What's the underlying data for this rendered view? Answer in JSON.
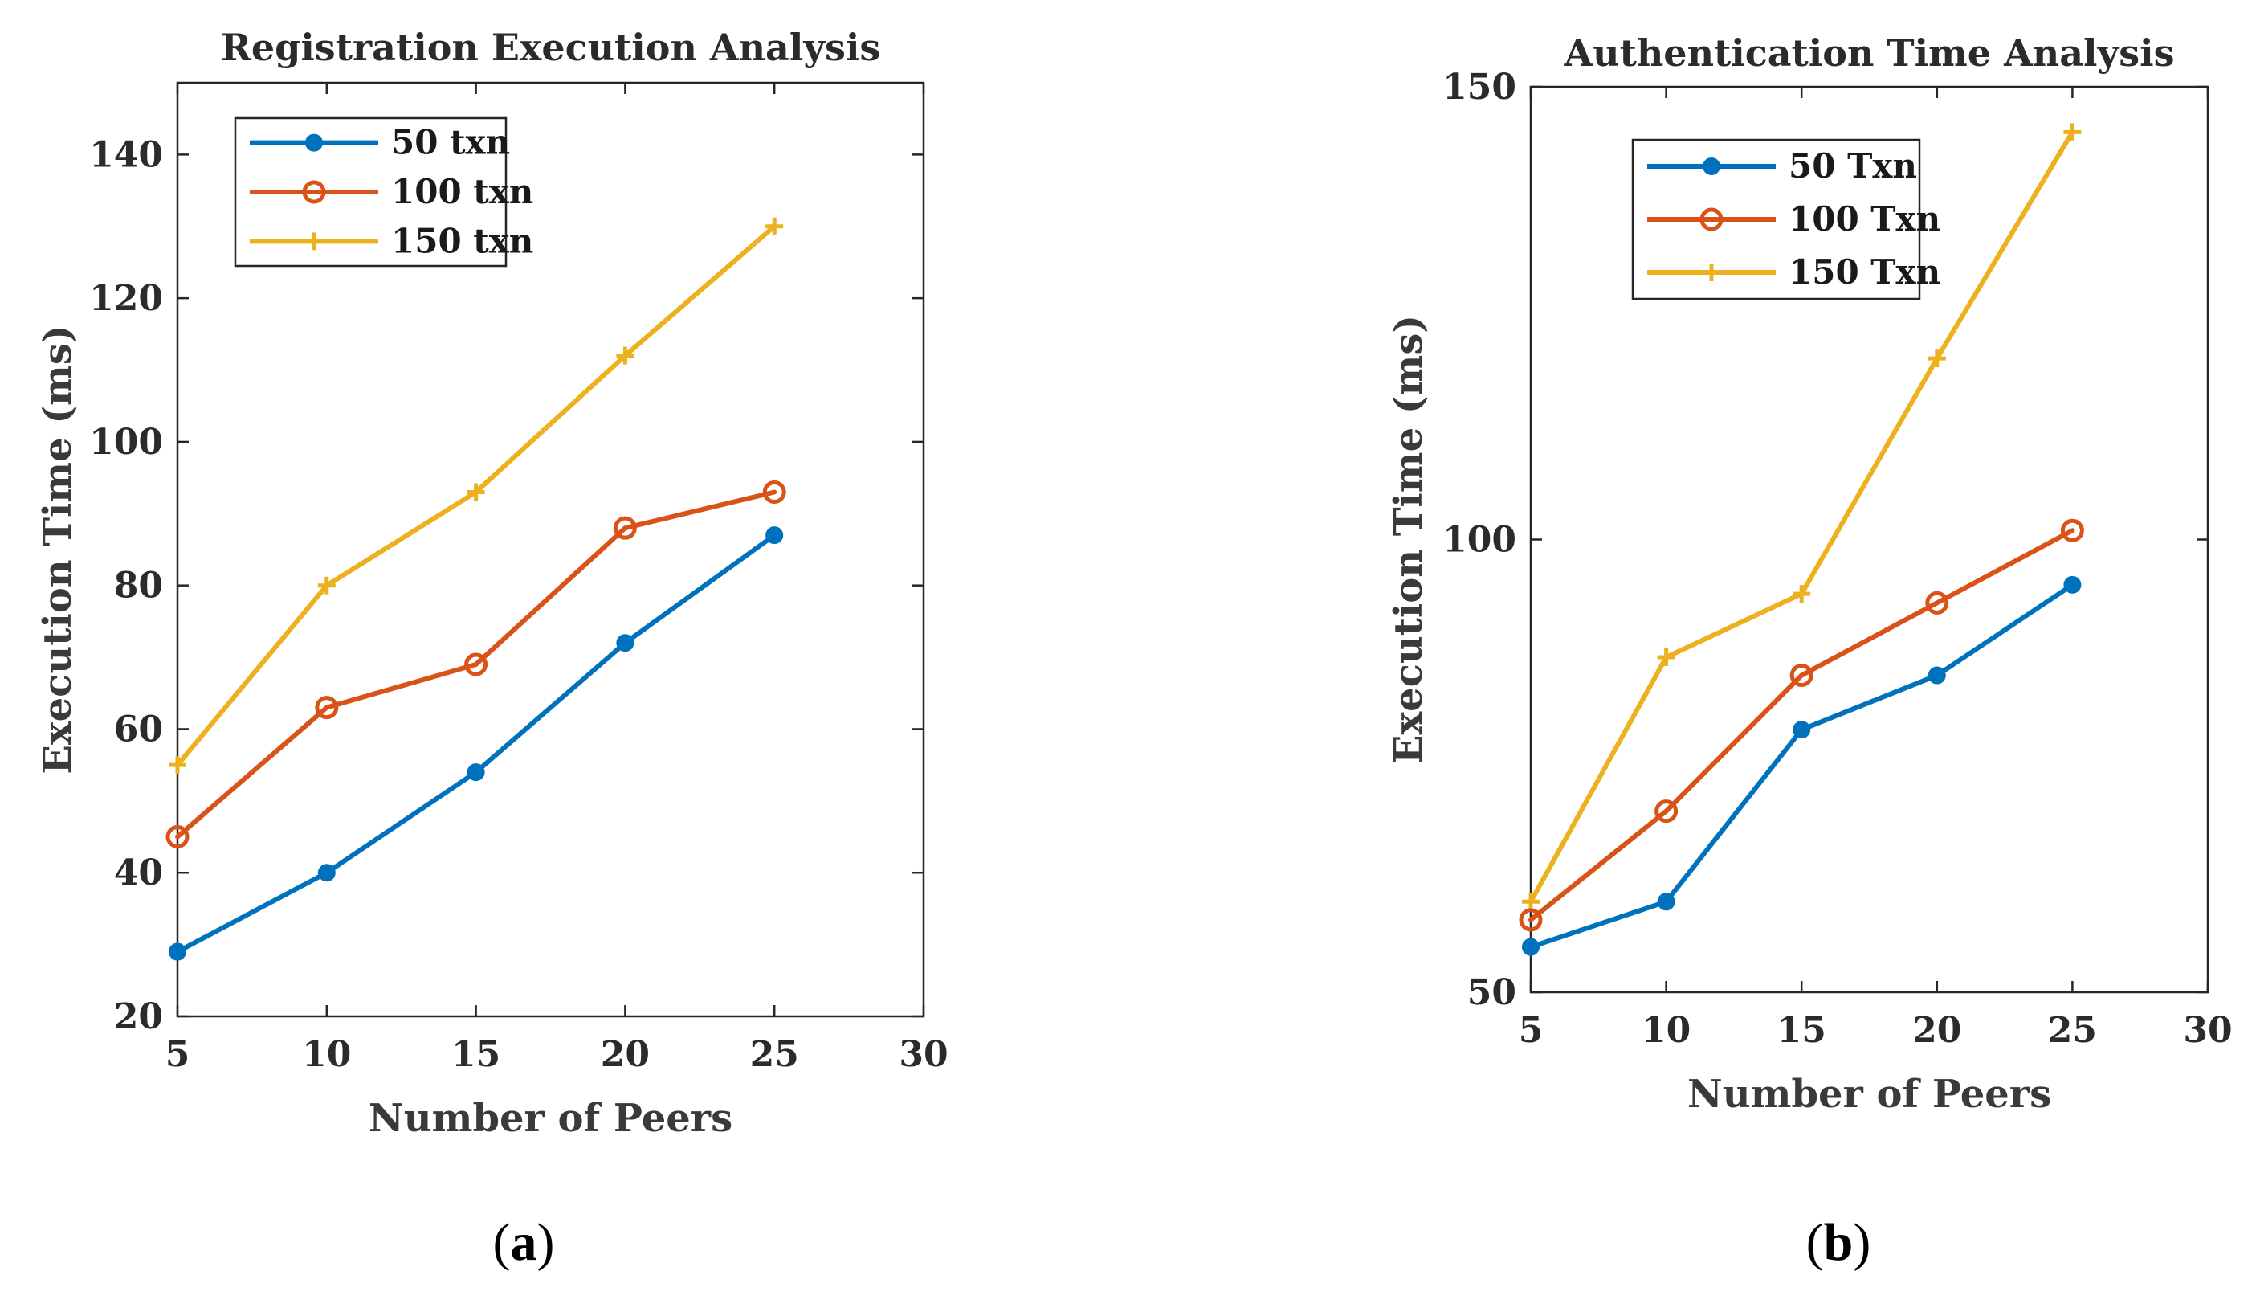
{
  "chart_data": [
    {
      "type": "line",
      "title": "Registration Execution  Analysis",
      "xlabel": "Number of Peers",
      "ylabel": "Execution Time (ms)",
      "xlim": [
        5,
        30
      ],
      "ylim": [
        20,
        150
      ],
      "xticks": [
        5,
        10,
        15,
        20,
        25,
        30
      ],
      "yticks": [
        20,
        40,
        60,
        80,
        100,
        120,
        140
      ],
      "legend_position": "top-left",
      "x": [
        5,
        10,
        15,
        20,
        25
      ],
      "series": [
        {
          "name": "50 txn",
          "values": [
            29,
            40,
            54,
            72,
            87
          ],
          "color": "#0072BD",
          "marker": "filled-circle"
        },
        {
          "name": "100 txn",
          "values": [
            45,
            63,
            69,
            88,
            93
          ],
          "color": "#D95319",
          "marker": "open-circle"
        },
        {
          "name": "150 txn",
          "values": [
            55,
            80,
            93,
            112,
            130
          ],
          "color": "#EDB120",
          "marker": "plus"
        }
      ],
      "caption": "(a)"
    },
    {
      "type": "line",
      "title": "Authentication Time Analysis",
      "xlabel": "Number of Peers",
      "ylabel": "Execution Time (ms)",
      "xlim": [
        5,
        30
      ],
      "ylim": [
        50,
        150
      ],
      "xticks": [
        5,
        10,
        15,
        20,
        25,
        30
      ],
      "yticks": [
        50,
        100,
        150
      ],
      "legend_position": "top-left",
      "x": [
        5,
        10,
        15,
        20,
        25
      ],
      "series": [
        {
          "name": "50 Txn",
          "values": [
            55,
            60,
            79,
            85,
            95
          ],
          "color": "#0072BD",
          "marker": "filled-circle"
        },
        {
          "name": "100 Txn",
          "values": [
            58,
            70,
            85,
            93,
            101
          ],
          "color": "#D95319",
          "marker": "open-circle"
        },
        {
          "name": "150 Txn",
          "values": [
            60,
            87,
            94,
            120,
            145
          ],
          "color": "#EDB120",
          "marker": "plus"
        }
      ],
      "caption": "(b)"
    }
  ]
}
